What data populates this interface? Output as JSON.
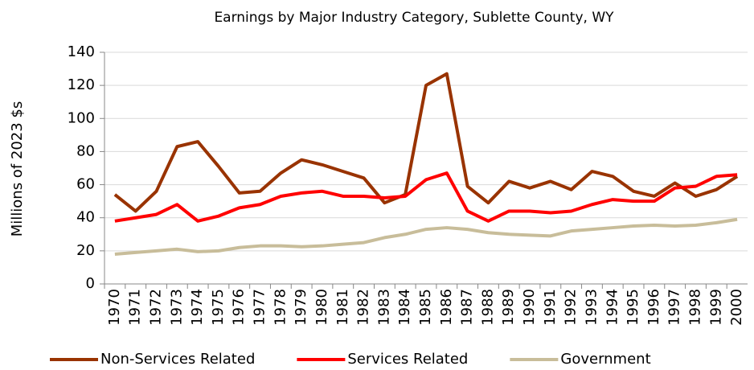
{
  "chart_data": {
    "type": "line",
    "title": "Earnings by Major Industry Category, Sublette County, WY",
    "y_label": "Millions of 2023 $s",
    "categories": [
      "1970",
      "1971",
      "1972",
      "1973",
      "1974",
      "1975",
      "1976",
      "1977",
      "1978",
      "1979",
      "1980",
      "1981",
      "1982",
      "1983",
      "1984",
      "1985",
      "1986",
      "1987",
      "1988",
      "1989",
      "1990",
      "1991",
      "1992",
      "1993",
      "1994",
      "1995",
      "1996",
      "1997",
      "1998",
      "1999",
      "2000"
    ],
    "series": [
      {
        "name": "Non-Services Related",
        "color": "#993300",
        "values": [
          54,
          44,
          56,
          83,
          86,
          71,
          55,
          56,
          67,
          75,
          72,
          68,
          64,
          49,
          54,
          120,
          127,
          59,
          49,
          62,
          58,
          62,
          57,
          68,
          65,
          56,
          53,
          61,
          53,
          57,
          65
        ]
      },
      {
        "name": "Services Related",
        "color": "#ff0000",
        "values": [
          38,
          40,
          42,
          48,
          38,
          41,
          46,
          48,
          53,
          55,
          56,
          53,
          53,
          52,
          53,
          63,
          67,
          44,
          38,
          44,
          44,
          43,
          44,
          48,
          51,
          50,
          50,
          58,
          59,
          65,
          66
        ]
      },
      {
        "name": "Government",
        "color": "#c8bd9a",
        "values": [
          18,
          19,
          20,
          21,
          19.5,
          20,
          22,
          23,
          23,
          22.5,
          23,
          24,
          25,
          28,
          30,
          33,
          34,
          33,
          31,
          30,
          29.5,
          29,
          32,
          33,
          34,
          35,
          35.5,
          35,
          35.5,
          37,
          39
        ]
      }
    ],
    "ylim": [
      0,
      140
    ],
    "yticks": [
      0,
      20,
      40,
      60,
      80,
      100,
      120,
      140
    ],
    "grid": true,
    "legend": "bottom"
  }
}
